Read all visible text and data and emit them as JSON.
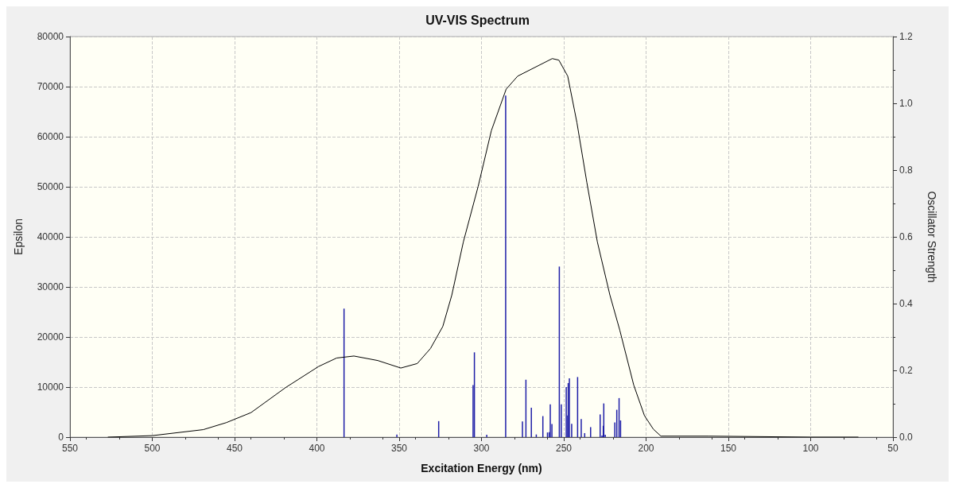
{
  "chart_data": {
    "type": "line",
    "title": "UV-VIS Spectrum",
    "xlabel": "Excitation Energy (nm)",
    "ylabel": "Epsilon",
    "y2label": "Oscillator Strength",
    "xlim": [
      550,
      50
    ],
    "xticks": [
      550,
      500,
      450,
      400,
      350,
      300,
      250,
      200,
      150,
      100,
      50
    ],
    "ylim": [
      0,
      80000
    ],
    "yticks": [
      0,
      10000,
      20000,
      30000,
      40000,
      50000,
      60000,
      70000,
      80000
    ],
    "y2lim": [
      0,
      1.2
    ],
    "y2ticks": [
      {
        "value": 0,
        "label": "0.0"
      },
      0.2,
      0.4,
      0.6,
      0.8,
      {
        "value": 1,
        "label": "1.0"
      },
      1.2
    ],
    "grid": true,
    "marker": "none",
    "line_style": "solid",
    "series": [
      {
        "color": "#000000",
        "x": [
          527,
          500,
          469,
          455,
          440,
          419,
          399,
          388,
          377.5,
          363,
          349,
          339,
          331,
          323.5,
          318,
          311,
          302,
          294,
          285,
          278,
          257,
          253,
          247.6,
          242,
          236,
          229.6,
          222,
          216,
          207.5,
          201,
          195.6,
          191,
          162,
          100,
          71
        ],
        "values": [
          0,
          300,
          1500,
          2900,
          4900,
          9900,
          14100,
          15800,
          16200,
          15300,
          13800,
          14700,
          17700,
          22100,
          28400,
          39000,
          50100,
          61200,
          69500,
          72100,
          75600,
          75300,
          72100,
          62800,
          50900,
          39000,
          28400,
          21400,
          10400,
          4300,
          1600,
          200,
          200,
          0,
          0
        ]
      },
      {
        "type": "bar",
        "axis": "y2",
        "color": "#1f1fa8",
        "x": [
          383.5,
          351.4,
          326,
          305.1,
          304.3,
          296.8,
          285.3,
          275.1,
          273,
          269.7,
          266.7,
          264.8,
          262.7,
          259.9,
          258.8,
          258.2,
          257.2,
          252.7,
          251.5,
          248.5,
          247.6,
          247.3,
          246.6,
          245.2,
          241.6,
          239.4,
          237.3,
          233.7,
          227.9,
          226.8,
          226,
          225.7,
          224.8,
          219,
          217.8,
          216.4,
          215.5
        ],
        "values": [
          0.385,
          0.008,
          0.048,
          0.156,
          0.254,
          0.007,
          1.023,
          0.047,
          0.172,
          0.088,
          0.008,
          null,
          0.063,
          0.014,
          0.015,
          0.098,
          0.039,
          0.511,
          0.098,
          0.15,
          0.065,
          0.162,
          0.176,
          0.04,
          0.18,
          0.054,
          0.012,
          0.03,
          0.068,
          0.005,
          0.034,
          0.101,
          0.007,
          0.044,
          0.082,
          0.117,
          0.05
        ]
      }
    ]
  }
}
